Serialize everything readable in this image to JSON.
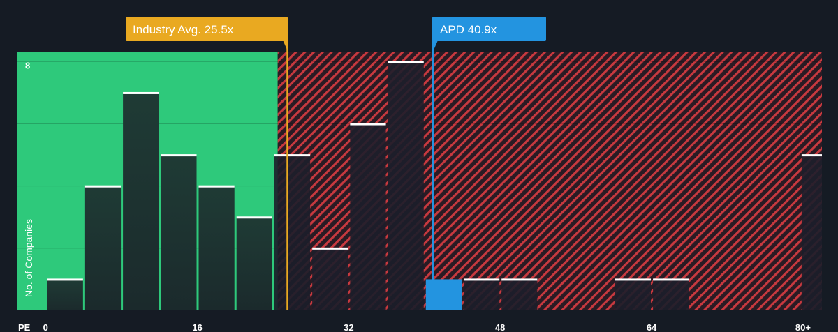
{
  "chart_data": {
    "type": "bar",
    "xlabel": "PE",
    "ylabel": "No. of Companies",
    "x_ticks": [
      "0",
      "16",
      "32",
      "48",
      "64",
      "80+"
    ],
    "y_ticks": [
      "8"
    ],
    "ylim": [
      0,
      8.3
    ],
    "xlim": [
      -3,
      82
    ],
    "bin_width": 4,
    "bins": [
      {
        "x": 0,
        "value": 1
      },
      {
        "x": 4,
        "value": 4
      },
      {
        "x": 8,
        "value": 7
      },
      {
        "x": 12,
        "value": 5
      },
      {
        "x": 16,
        "value": 4
      },
      {
        "x": 20,
        "value": 3
      },
      {
        "x": 24,
        "value": 5
      },
      {
        "x": 28,
        "value": 2
      },
      {
        "x": 32,
        "value": 6
      },
      {
        "x": 36,
        "value": 8
      },
      {
        "x": 40,
        "value": 1,
        "highlight": true
      },
      {
        "x": 44,
        "value": 1
      },
      {
        "x": 48,
        "value": 1
      },
      {
        "x": 60,
        "value": 1
      },
      {
        "x": 64,
        "value": 1
      },
      {
        "x": 80,
        "value": 5
      }
    ],
    "industry_avg": {
      "label": "Industry Avg. 25.5x",
      "value": 25.5
    },
    "company": {
      "label": "APD 40.9x",
      "value": 40.9
    },
    "fair_zone_end": 24.5,
    "colors": {
      "background": "#151b24",
      "fair_zone": "#2ec97b",
      "expensive_zone": "#c8393f",
      "industry_avg": "#e9a921",
      "company": "#2394e0",
      "bar_top": "#ffffff"
    }
  }
}
